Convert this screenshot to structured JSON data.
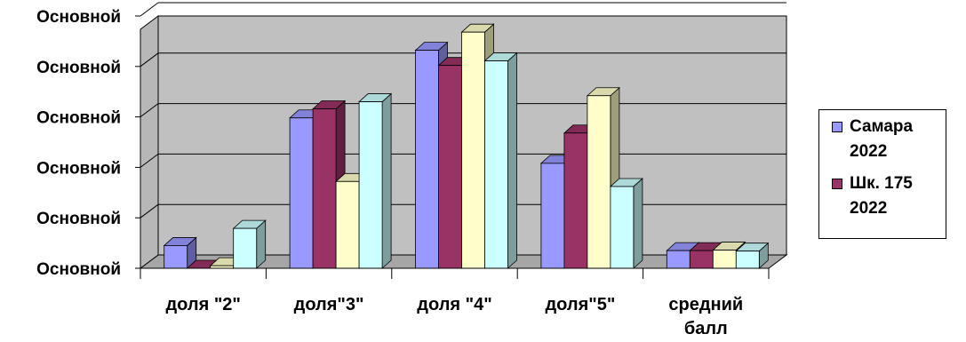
{
  "chart_data": {
    "type": "bar",
    "style": "3d-clustered-column",
    "categories": [
      [
        "доля \"2\""
      ],
      [
        "доля\"3\""
      ],
      [
        "доля \"4\""
      ],
      [
        "доля\"5\""
      ],
      [
        "средний",
        "балл"
      ]
    ],
    "ytick_labels": [
      "Основной",
      "Основной",
      "Основной",
      "Основной",
      "Основной",
      "Основной"
    ],
    "ylim": [
      0,
      50
    ],
    "grid": true,
    "legend_position": "right",
    "series": [
      {
        "name": "Самара 2022",
        "color": "#9999ff",
        "values": [
          4.5,
          29.8,
          43.2,
          20.8,
          3.5
        ]
      },
      {
        "name": "Шк. 175 2022",
        "color": "#993366",
        "values": [
          0,
          31.6,
          40.2,
          26.8,
          3.5
        ]
      },
      {
        "name": "",
        "color": "#ffffcc",
        "values": [
          0.5,
          17.2,
          46.8,
          34.2,
          3.6
        ]
      },
      {
        "name": "",
        "color": "#ccffff",
        "values": [
          7.9,
          33.0,
          41.1,
          16.2,
          3.4
        ]
      }
    ],
    "legend_entries": [
      [
        "Самара",
        "2022"
      ],
      [
        "Шк. 175",
        "2022"
      ]
    ]
  }
}
